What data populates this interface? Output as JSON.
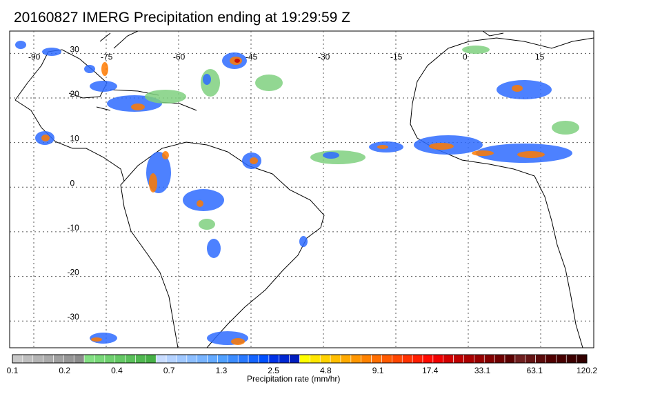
{
  "title": "20160827 IMERG Precipitation ending at 19:29:59 Z",
  "map": {
    "lon_labels": [
      "-90",
      "-75",
      "-60",
      "-45",
      "-30",
      "-15",
      "0",
      "15"
    ],
    "lat_labels": [
      "30",
      "20",
      "10",
      "0",
      "-10",
      "-20",
      "-30"
    ],
    "lon_range": [
      -95,
      26
    ],
    "lat_range": [
      35,
      -36
    ],
    "gridlines": true
  },
  "colorbar": {
    "label": "Precipitation rate (mm/hr)",
    "tick_labels": [
      "0.1",
      "0.2",
      "0.4",
      "0.7",
      "1.3",
      "2.5",
      "4.8",
      "9.1",
      "17.4",
      "33.1",
      "63.1",
      "120.2"
    ],
    "colors": [
      "#c8c8c8",
      "#bebebe",
      "#b4b4b4",
      "#aaaaaa",
      "#a0a0a0",
      "#969696",
      "#8c8c8c",
      "#82e082",
      "#78d878",
      "#6ed06e",
      "#64c864",
      "#5ac05a",
      "#50b850",
      "#46b046",
      "#c8dcff",
      "#b4d2ff",
      "#a0c8ff",
      "#8cbeff",
      "#78b4ff",
      "#64aaff",
      "#50a0ff",
      "#3c8cff",
      "#2878ff",
      "#1464ff",
      "#0050ff",
      "#0032e6",
      "#0028d2",
      "#001ebe",
      "#ffff00",
      "#ffe600",
      "#ffd200",
      "#ffbe00",
      "#ffaa00",
      "#ff9600",
      "#ff8200",
      "#ff6e00",
      "#ff5a00",
      "#ff4600",
      "#ff3200",
      "#ff1e00",
      "#ff0a00",
      "#f00000",
      "#d20000",
      "#be0000",
      "#aa0000",
      "#960000",
      "#820000",
      "#6e0000",
      "#5a0000",
      "#6e1e1e",
      "#641414",
      "#5a0a0a",
      "#500000",
      "#460000",
      "#3c0000",
      "#320000"
    ]
  },
  "palette": {
    "land_outline": "#000000",
    "grid": "#555555",
    "light": "#7fd07f",
    "moderate": "#2e6bff",
    "heavy": "#ff7a00",
    "intense": "#c80000"
  }
}
